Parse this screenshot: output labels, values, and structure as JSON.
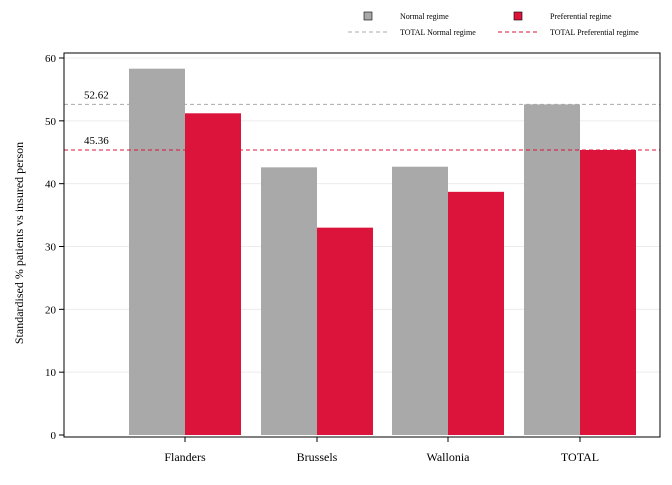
{
  "chart_data": {
    "type": "bar",
    "categories": [
      "Flanders",
      "Brussels",
      "Wallonia",
      "TOTAL"
    ],
    "series": [
      {
        "name": "Normal regime",
        "color": "#a9a9a9",
        "values": [
          58.3,
          42.6,
          42.7,
          52.62
        ]
      },
      {
        "name": "Preferential regime",
        "color": "#dc143c",
        "values": [
          51.2,
          33.0,
          38.7,
          45.36
        ]
      }
    ],
    "reference_lines": [
      {
        "name": "TOTAL Normal regime",
        "value": 52.62,
        "label": "52.62",
        "color": "#a9a9a9",
        "dashed": true
      },
      {
        "name": "TOTAL Preferential regime",
        "value": 45.36,
        "label": "45.36",
        "color": "#dc143c",
        "dashed": true
      }
    ],
    "ylabel": "Standardised % patients vs insured person",
    "xlabel": "",
    "ylim": [
      0,
      60
    ],
    "yticks": [
      0,
      10,
      20,
      30,
      40,
      50,
      60
    ],
    "grid": true,
    "legend_position": "top-right"
  }
}
